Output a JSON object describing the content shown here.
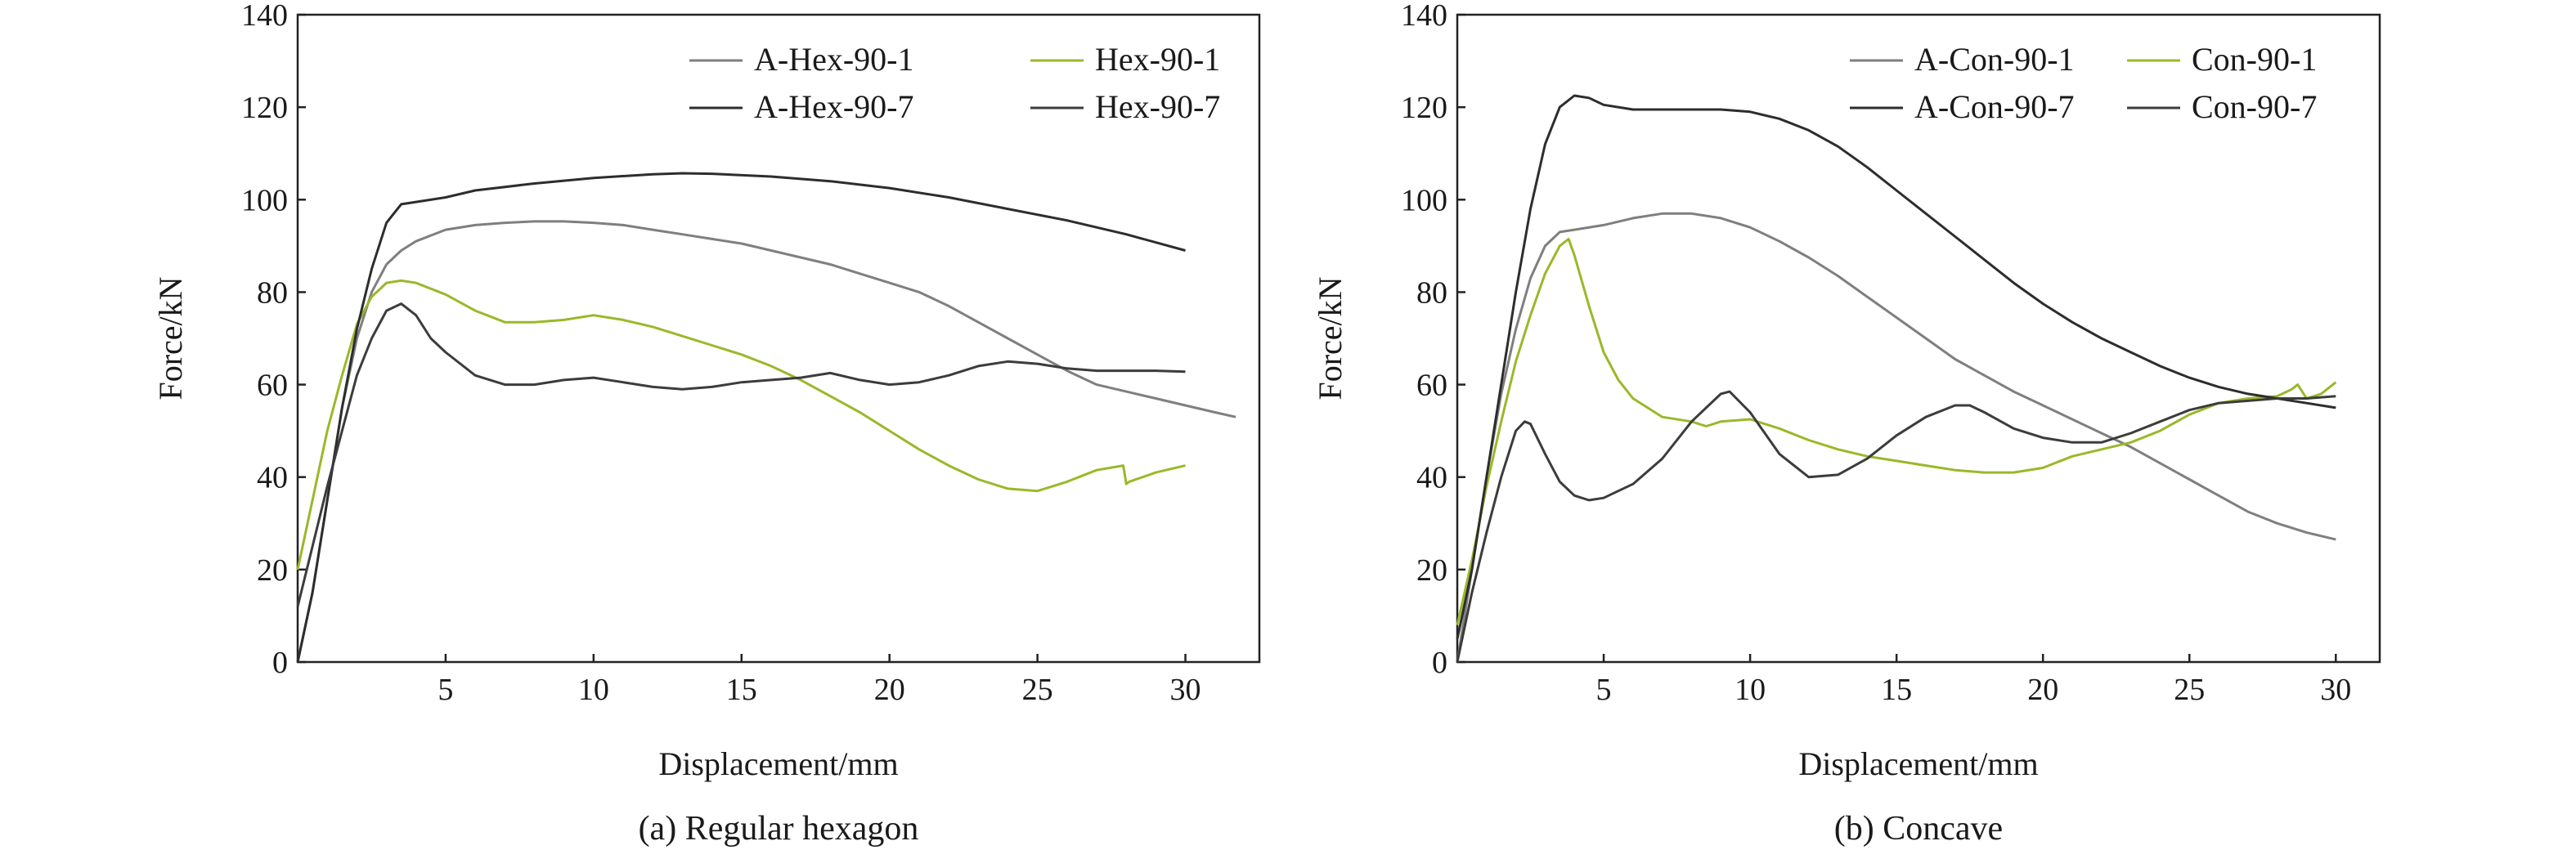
{
  "chart_data": [
    {
      "type": "line",
      "caption": "(a) Regular hexagon",
      "xlabel": "Displacement/mm",
      "ylabel": "Force/kN",
      "xlim": [
        0,
        32.5
      ],
      "ylim": [
        0,
        140
      ],
      "xticks": [
        5,
        10,
        15,
        20,
        25,
        30
      ],
      "yticks": [
        0,
        20,
        40,
        60,
        80,
        100,
        120,
        140
      ],
      "legend": [
        "A-Hex-90-1",
        "Hex-90-1",
        "A-Hex-90-7",
        "Hex-90-7"
      ],
      "series": [
        {
          "name": "A-Hex-90-1",
          "color": "#7f7f7f",
          "x": [
            0,
            0.5,
            1,
            1.5,
            2,
            2.5,
            3,
            3.5,
            4,
            5,
            6,
            7,
            8,
            9,
            10,
            11,
            12,
            13,
            14,
            15,
            16,
            17,
            18,
            19,
            20,
            21,
            22,
            23,
            24,
            25,
            26,
            27,
            28,
            29,
            30,
            31,
            31.7
          ],
          "y": [
            0,
            15,
            35,
            55,
            70,
            80,
            86,
            89,
            91,
            93.5,
            94.5,
            95,
            95.3,
            95.3,
            95,
            94.5,
            93.5,
            92.5,
            91.5,
            90.5,
            89,
            87.5,
            86,
            84,
            82,
            80,
            77,
            73.5,
            70,
            66.5,
            63,
            60,
            58.5,
            57,
            55.5,
            54,
            53
          ]
        },
        {
          "name": "Hex-90-1",
          "color": "#9ab82a",
          "x": [
            0,
            0.5,
            1,
            1.5,
            2,
            2.5,
            3,
            3.5,
            4,
            5,
            6,
            7,
            8,
            9,
            10,
            11,
            12,
            13,
            14,
            15,
            16,
            17,
            18,
            19,
            20,
            21,
            22,
            23,
            24,
            25,
            26,
            27,
            27.9,
            28,
            28.1,
            29,
            30
          ],
          "y": [
            20,
            35,
            50,
            62,
            73,
            79,
            82,
            82.5,
            82,
            79.5,
            76,
            73.5,
            73.5,
            74,
            75,
            74,
            72.5,
            70.5,
            68.5,
            66.5,
            64,
            61,
            57.5,
            54,
            50,
            46,
            42.5,
            39.5,
            37.5,
            37,
            39,
            41.5,
            42.5,
            38.5,
            39,
            41,
            42.5
          ]
        },
        {
          "name": "A-Hex-90-7",
          "color": "#2d2d2d",
          "x": [
            0,
            0.5,
            1,
            1.5,
            2,
            2.5,
            3,
            3.5,
            4,
            5,
            6,
            8,
            10,
            12,
            13,
            14,
            16,
            18,
            20,
            22,
            24,
            26,
            28,
            30
          ],
          "y": [
            0,
            15,
            35,
            55,
            72,
            85,
            95,
            99,
            99.5,
            100.5,
            102,
            103.5,
            104.7,
            105.5,
            105.7,
            105.6,
            105,
            104,
            102.5,
            100.5,
            98,
            95.5,
            92.5,
            89
          ]
        },
        {
          "name": "Hex-90-7",
          "color": "#3c3c3c",
          "x": [
            0,
            0.5,
            1,
            1.5,
            2,
            2.5,
            3,
            3.5,
            4,
            4.5,
            5,
            6,
            7,
            8,
            9,
            10,
            11,
            12,
            13,
            14,
            15,
            16,
            17,
            18,
            19,
            20,
            21,
            22,
            23,
            24,
            25,
            26,
            27,
            28,
            29,
            30
          ],
          "y": [
            12,
            25,
            38,
            50,
            62,
            70,
            76,
            77.5,
            75,
            70,
            67,
            62,
            60,
            60,
            61,
            61.5,
            60.5,
            59.5,
            59,
            59.5,
            60.5,
            61,
            61.5,
            62.5,
            61,
            60,
            60.5,
            62,
            64,
            65,
            64.5,
            63.5,
            63,
            63,
            63,
            62.8
          ]
        }
      ]
    },
    {
      "type": "line",
      "caption": "(b) Concave",
      "xlabel": "Displacement/mm",
      "ylabel": "Force/kN",
      "xlim": [
        0,
        31.5
      ],
      "ylim": [
        0,
        140
      ],
      "xticks": [
        5,
        10,
        15,
        20,
        25,
        30
      ],
      "yticks": [
        0,
        20,
        40,
        60,
        80,
        100,
        120,
        140
      ],
      "legend": [
        "A-Con-90-1",
        "Con-90-1",
        "A-Con-90-7",
        "Con-90-7"
      ],
      "series": [
        {
          "name": "A-Con-90-1",
          "color": "#7f7f7f",
          "x": [
            0,
            0.5,
            1,
            1.5,
            2,
            2.5,
            3,
            3.5,
            4,
            5,
            6,
            7,
            8,
            9,
            10,
            11,
            12,
            13,
            14,
            15,
            16,
            17,
            18,
            19,
            20,
            21,
            22,
            23,
            24,
            25,
            26,
            27,
            28,
            29,
            30
          ],
          "y": [
            0,
            20,
            40,
            58,
            72,
            83,
            90,
            93,
            93.5,
            94.5,
            96,
            97,
            97,
            96,
            94,
            91,
            87.5,
            83.5,
            79,
            74.5,
            70,
            65.5,
            62,
            58.5,
            55.5,
            52.5,
            49.5,
            46.5,
            43,
            39.5,
            36,
            32.5,
            30,
            28,
            26.5
          ]
        },
        {
          "name": "Con-90-1",
          "color": "#9ab82a",
          "x": [
            0,
            0.5,
            1,
            1.5,
            2,
            2.5,
            3,
            3.5,
            3.8,
            4,
            4.5,
            5,
            5.5,
            6,
            7,
            8,
            8.5,
            9,
            10,
            11,
            12,
            13,
            14,
            15,
            16,
            17,
            18,
            19,
            20,
            21,
            22,
            23,
            24,
            25,
            26,
            27,
            28,
            28.5,
            28.7,
            29,
            29.5,
            30
          ],
          "y": [
            8,
            22,
            38,
            52,
            65,
            75,
            84,
            90,
            91.5,
            88,
            77,
            67,
            61,
            57,
            53,
            52,
            51,
            52,
            52.5,
            50.5,
            48,
            46,
            44.5,
            43.5,
            42.5,
            41.5,
            41,
            41,
            42,
            44.5,
            46,
            47.5,
            50,
            53.5,
            56,
            57,
            57.5,
            59,
            60,
            57,
            58,
            60.5
          ]
        },
        {
          "name": "A-Con-90-7",
          "color": "#2d2d2d",
          "x": [
            0,
            0.5,
            1,
            1.5,
            2,
            2.5,
            3,
            3.5,
            4,
            4.5,
            5,
            6,
            7,
            8,
            9,
            10,
            11,
            12,
            13,
            14,
            15,
            16,
            17,
            18,
            19,
            20,
            21,
            22,
            23,
            24,
            25,
            26,
            27,
            28,
            29,
            30
          ],
          "y": [
            5,
            20,
            40,
            60,
            80,
            98,
            112,
            120,
            122.5,
            122,
            120.5,
            119.5,
            119.5,
            119.5,
            119.5,
            119,
            117.5,
            115,
            111.5,
            107,
            102,
            97,
            92,
            87,
            82,
            77.5,
            73.5,
            70,
            67,
            64,
            61.5,
            59.5,
            58,
            57,
            56,
            55
          ]
        },
        {
          "name": "Con-90-7",
          "color": "#3c3c3c",
          "x": [
            0,
            0.5,
            1,
            1.5,
            2,
            2.3,
            2.5,
            3,
            3.5,
            4,
            4.5,
            5,
            6,
            7,
            8,
            9,
            9.3,
            10,
            11,
            12,
            13,
            14,
            15,
            16,
            17,
            17.5,
            18,
            19,
            20,
            21,
            22,
            23,
            24,
            25,
            26,
            27,
            28,
            29,
            30
          ],
          "y": [
            0,
            15,
            28,
            40,
            50,
            52,
            51.5,
            45,
            39,
            36,
            35,
            35.5,
            38.5,
            44,
            52,
            58,
            58.5,
            54,
            45,
            40,
            40.5,
            44,
            49,
            53,
            55.5,
            55.5,
            54,
            50.5,
            48.5,
            47.5,
            47.5,
            49.5,
            52,
            54.5,
            56,
            56.5,
            57,
            57,
            57.5
          ]
        }
      ]
    }
  ]
}
